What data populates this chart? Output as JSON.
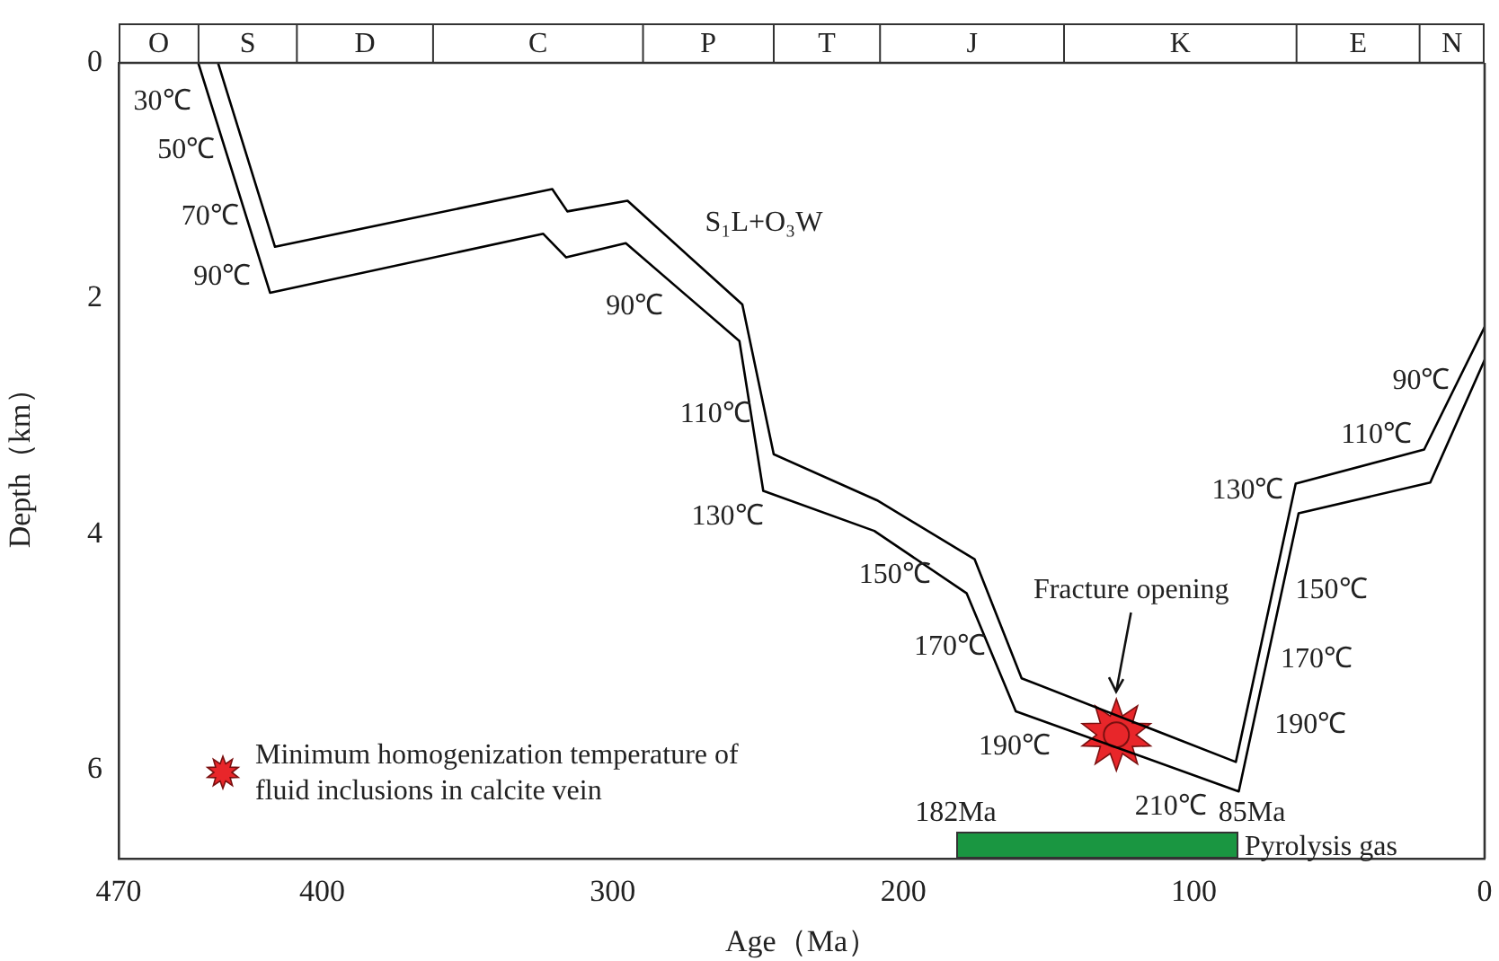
{
  "chart_data": {
    "type": "line",
    "xlabel": "Age（Ma）",
    "ylabel": "Depth（km）",
    "xlim": [
      470,
      0
    ],
    "xticks": [
      470,
      400,
      300,
      200,
      100,
      0
    ],
    "ylim": [
      6.75,
      0
    ],
    "yticks": [
      0,
      2,
      4,
      6
    ],
    "grid": false,
    "legend": "bottom left",
    "series": [
      {
        "color": "#000000",
        "marker": "none",
        "x": [
          435.8,
          416.2,
          320.8,
          315.6,
          294.9,
          255.4,
          244.6,
          209.1,
          175.5,
          159.3,
          85.6,
          65,
          20.8,
          0
        ],
        "values": [
          0,
          1.56,
          1.07,
          1.26,
          1.17,
          2.05,
          3.32,
          3.71,
          4.21,
          5.22,
          5.93,
          3.57,
          3.28,
          2.24
        ]
      },
      {
        "color": "#000000",
        "marker": "none",
        "x": [
          442.6,
          417.9,
          323.9,
          316,
          295.5,
          256.4,
          248.2,
          210,
          178.2,
          161.3,
          84.6,
          64,
          18.7,
          0
        ],
        "values": [
          0,
          1.95,
          1.45,
          1.65,
          1.53,
          2.36,
          3.63,
          3.97,
          4.5,
          5.5,
          6.18,
          3.82,
          3.56,
          2.52
        ]
      },
      {
        "type": "scatter",
        "name": "Minimum homogenization temperature of fluid inclusions in calcite vein",
        "color": "#e8262a",
        "marker": "star",
        "x": [
          126.7
        ],
        "values": [
          5.7
        ]
      }
    ],
    "annotations": [
      "O",
      "S",
      "D",
      "C",
      "P",
      "T",
      "J",
      "K",
      "E",
      "N",
      "Fracture opening",
      "S₁L+O₃W",
      "30℃",
      "50℃",
      "70℃",
      "90℃",
      "90℃",
      "110℃",
      "130℃",
      "150℃",
      "170℃",
      "190℃",
      "210℃",
      "190℃",
      "170℃",
      "150℃",
      "130℃",
      "110℃",
      "90℃",
      "182Ma",
      "85Ma",
      "Pyrolysis gas"
    ]
  }
}
